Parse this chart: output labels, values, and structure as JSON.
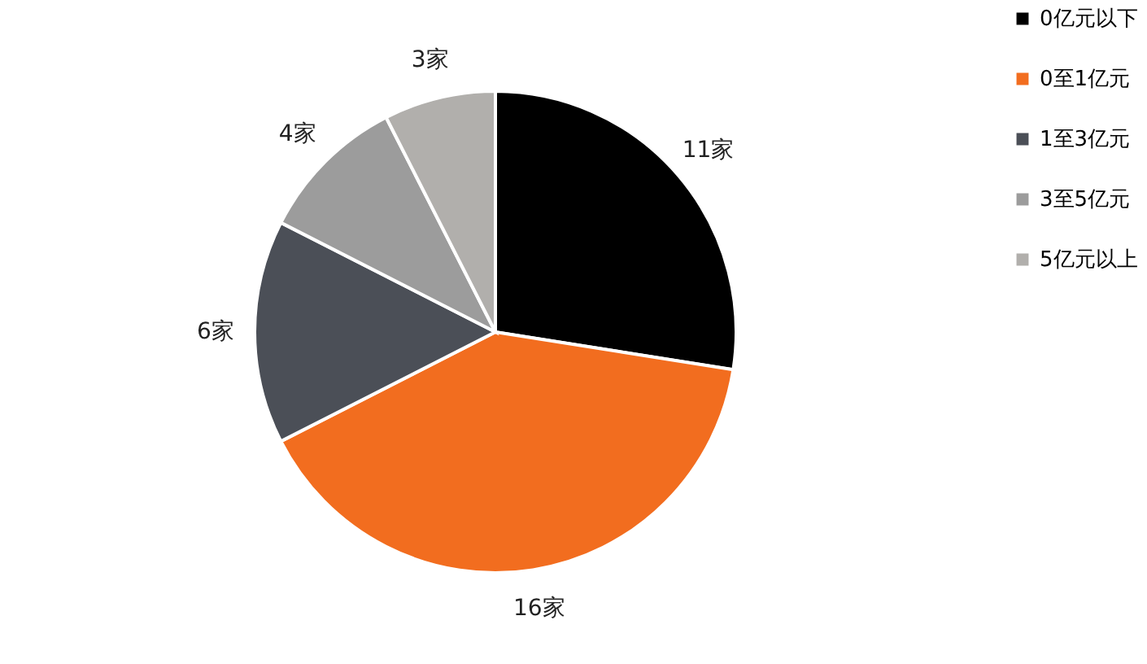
{
  "chart_data": {
    "type": "pie",
    "categories": [
      "0亿元以下",
      "0至1亿元",
      "1至3亿元",
      "3至5亿元",
      "5亿元以上"
    ],
    "values": [
      11,
      16,
      6,
      4,
      3
    ],
    "value_labels": [
      "11家",
      "16家",
      "6家",
      "4家",
      "3家"
    ],
    "colors": [
      "#000000",
      "#f26d1f",
      "#4b4f57",
      "#9c9c9c",
      "#b1afac"
    ],
    "legend": "right"
  }
}
